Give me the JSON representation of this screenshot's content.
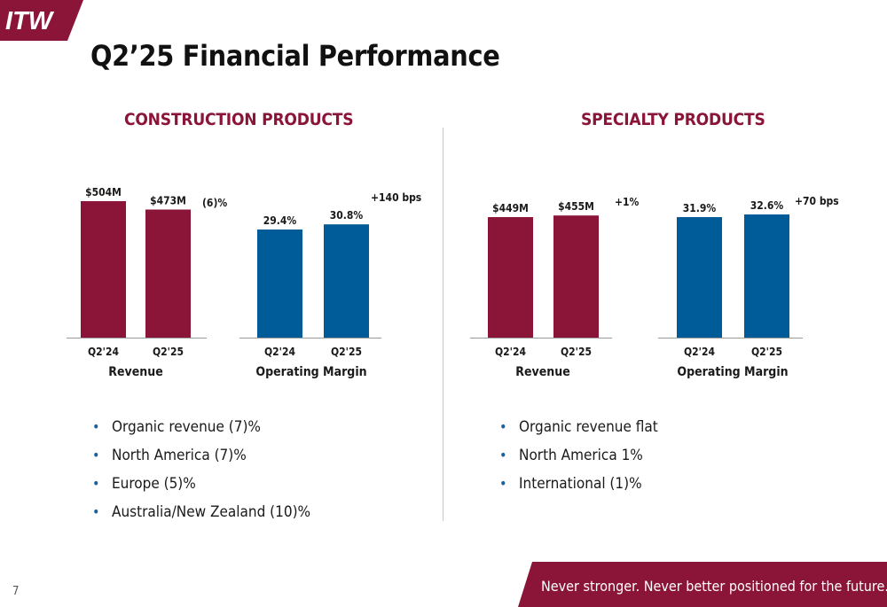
{
  "brand": {
    "logo_text": "ITW",
    "colors": {
      "primary": "#8a1538",
      "secondary": "#005b99",
      "heading": "#8a1538"
    }
  },
  "page": {
    "title": "Q2’25 Financial Performance",
    "page_number": "7",
    "tagline": "Never stronger. Never better positioned for the future."
  },
  "sections": [
    {
      "heading": "CONSTRUCTION PRODUCTS",
      "bullets": [
        "Organic revenue (7)%",
        "North America (7)%",
        "Europe (5)%",
        "Australia/New Zealand (10)%"
      ]
    },
    {
      "heading": "SPECIALTY PRODUCTS",
      "bullets": [
        "Organic revenue flat",
        "North America 1%",
        "International (1)%"
      ]
    }
  ],
  "chart_data": [
    {
      "type": "bar",
      "xlabel": "Revenue",
      "unit": "$M",
      "categories": [
        "Q2'24",
        "Q2'25"
      ],
      "values": [
        504,
        473
      ],
      "labels": [
        "$504M",
        "$473M"
      ],
      "change": "(6)%",
      "color": "#8a1538"
    },
    {
      "type": "bar",
      "xlabel": "Operating Margin",
      "unit": "%",
      "categories": [
        "Q2'24",
        "Q2'25"
      ],
      "values": [
        29.4,
        30.8
      ],
      "labels": [
        "29.4%",
        "30.8%"
      ],
      "change": "+140 bps",
      "color": "#005b99"
    },
    {
      "type": "bar",
      "xlabel": "Revenue",
      "unit": "$M",
      "categories": [
        "Q2'24",
        "Q2'25"
      ],
      "values": [
        449,
        455
      ],
      "labels": [
        "$449M",
        "$455M"
      ],
      "change": "+1%",
      "color": "#8a1538"
    },
    {
      "type": "bar",
      "xlabel": "Operating Margin",
      "unit": "%",
      "categories": [
        "Q2'24",
        "Q2'25"
      ],
      "values": [
        31.9,
        32.6
      ],
      "labels": [
        "31.9%",
        "32.6%"
      ],
      "change": "+70 bps",
      "color": "#005b99"
    }
  ]
}
